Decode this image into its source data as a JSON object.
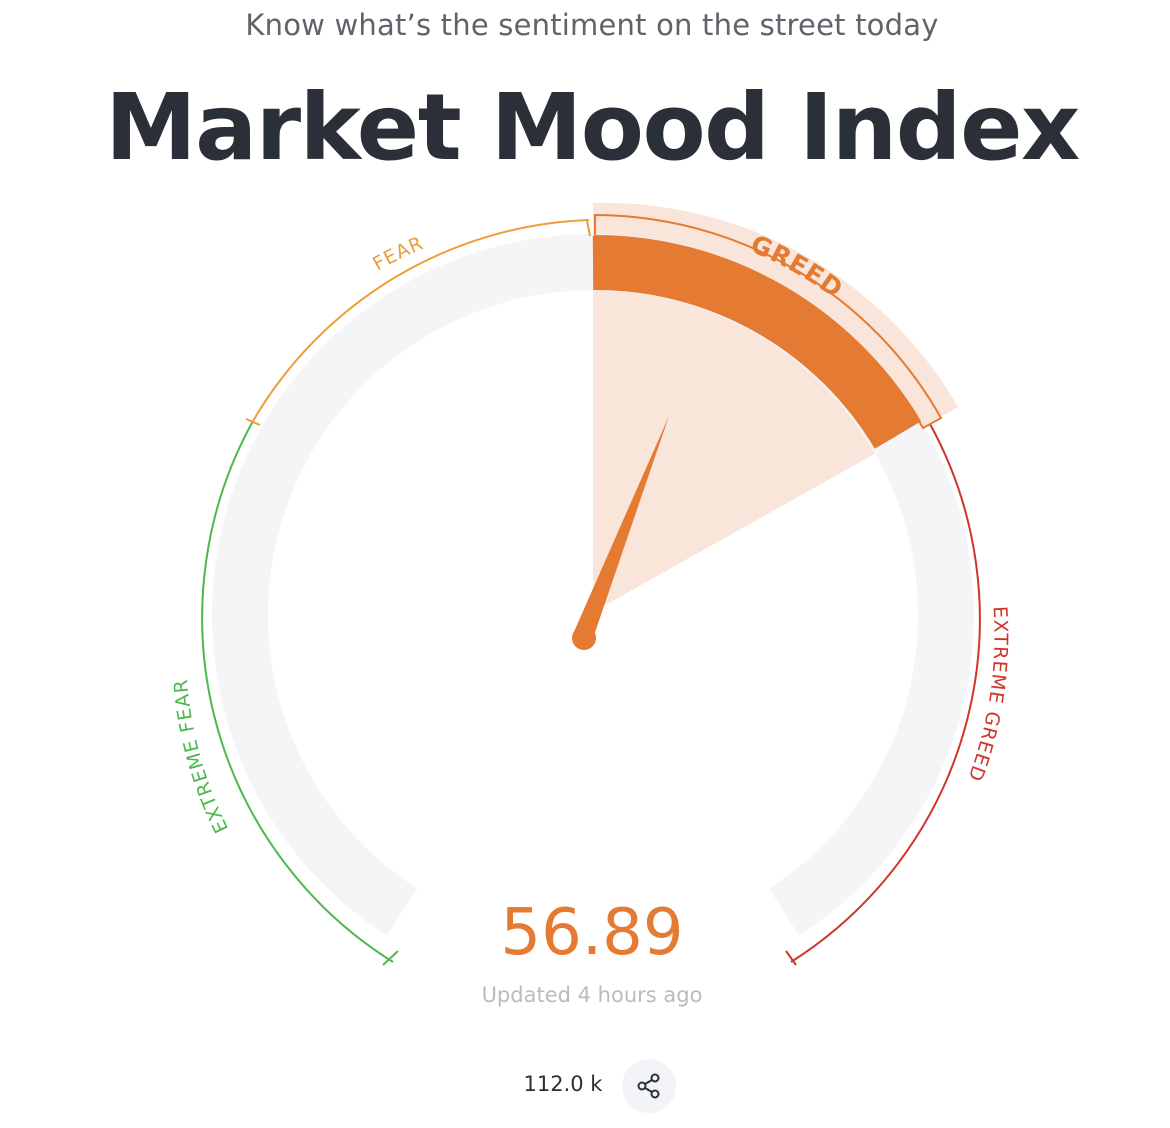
{
  "header": {
    "subtitle": "Know what’s the sentiment on the street today",
    "title": "Market Mood Index"
  },
  "gauge": {
    "value": 56.89,
    "value_text": "56.89",
    "updated": "Updated 4 hours ago",
    "zones": [
      {
        "label": "EXTREME FEAR",
        "color": "#4cb84e"
      },
      {
        "label": "FEAR",
        "color": "#ef9d37"
      },
      {
        "label": "GREED",
        "color": "#e57a32"
      },
      {
        "label": "EXTREME GREED",
        "color": "#d0352b"
      }
    ],
    "active_zone": "GREED",
    "track_color": "#f4f5f7",
    "highlight_fill": "#f9e5d9",
    "needle_color": "#e57a32"
  },
  "footer": {
    "views": "112.0 k",
    "share_icon": "share-icon"
  }
}
